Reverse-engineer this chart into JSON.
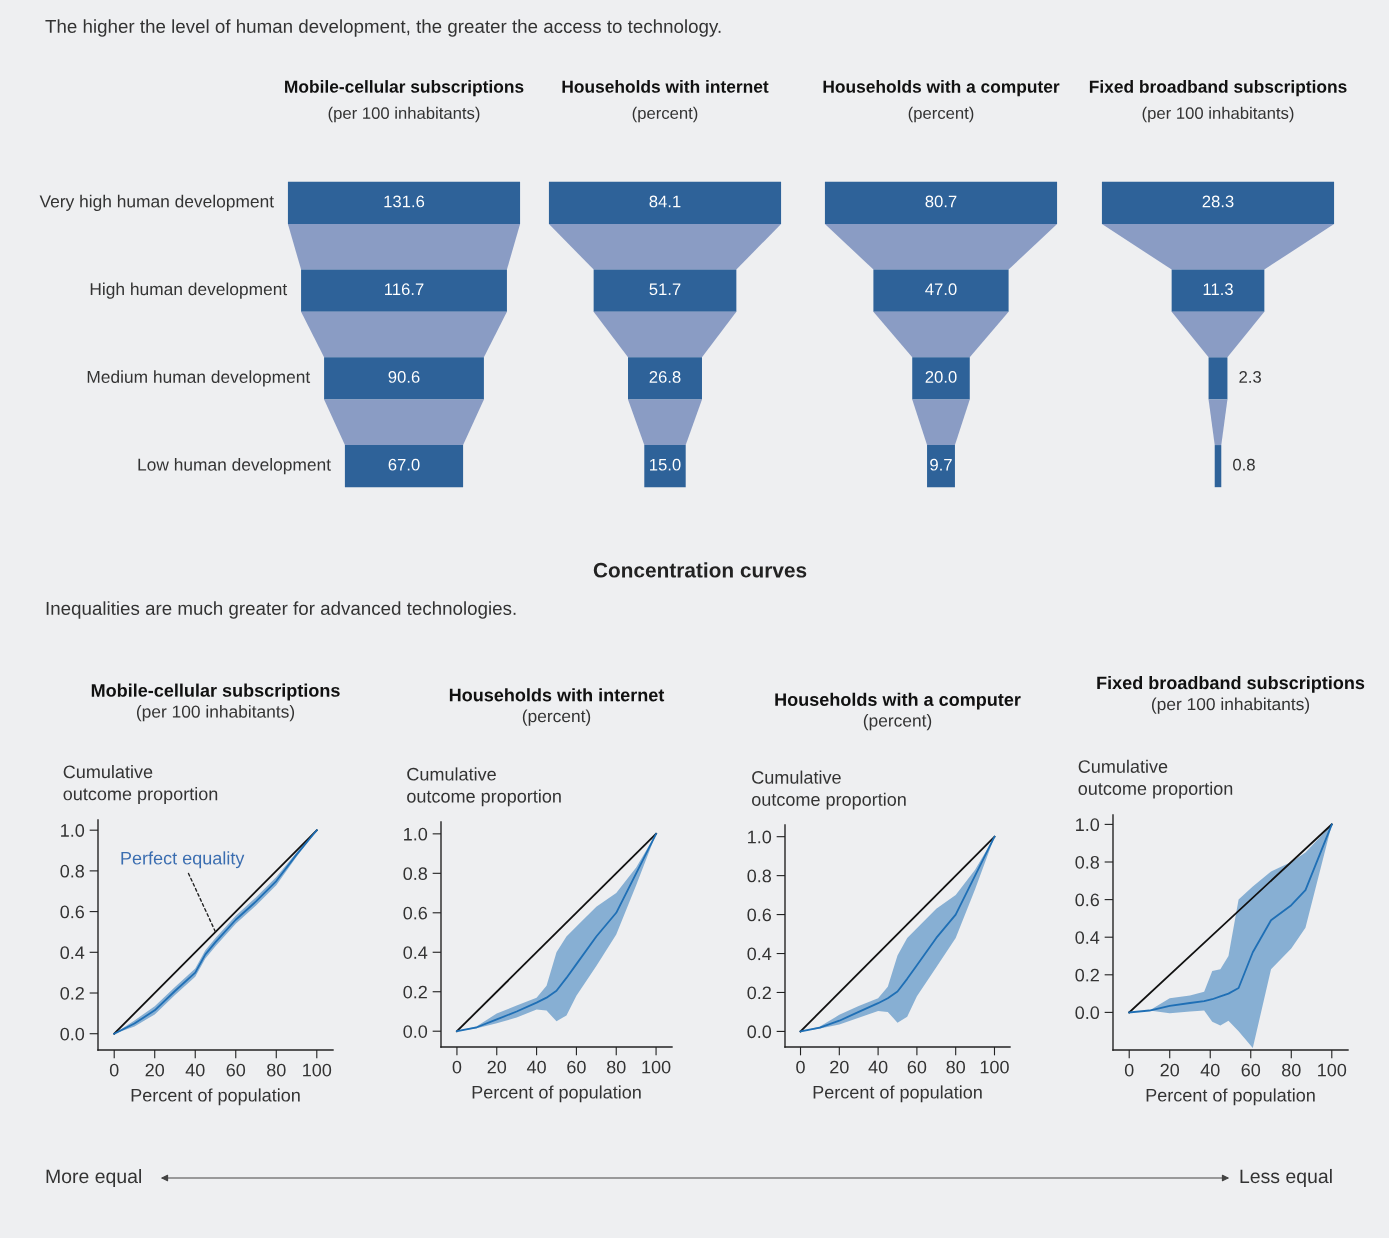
{
  "chart_data": [
    {
      "type": "other",
      "title": "Mobile-cellular subscriptions",
      "subtitle": "(per 100 inhabitants)",
      "categories": [
        "Very high human development",
        "High human development",
        "Medium human development",
        "Low human development"
      ],
      "values": [
        131.6,
        116.7,
        90.6,
        67.0
      ],
      "value_labels": [
        "131.6",
        "116.7",
        "90.6",
        "67.0"
      ],
      "color": "#2e6299",
      "annotations": [
        "The higher the level of human development, the greater the access to technology."
      ]
    },
    {
      "type": "other",
      "title": "Households with internet",
      "subtitle": "(percent)",
      "categories": [
        null,
        null,
        null,
        null
      ],
      "values": [
        84.1,
        51.7,
        26.8,
        15.0
      ],
      "value_labels": [
        "84.1",
        "51.7",
        "26.8",
        "15.0"
      ],
      "color": "#2e6299"
    },
    {
      "type": "other",
      "title": "Households with a computer",
      "subtitle": "(percent)",
      "categories": [
        null,
        null,
        null,
        null
      ],
      "values": [
        80.7,
        47.0,
        20.0,
        9.7
      ],
      "value_labels": [
        "80.7",
        "47.0",
        "20.0",
        "9.7"
      ],
      "color": "#2e6299"
    },
    {
      "type": "other",
      "title": "Fixed broadband subscriptions",
      "subtitle": "(per 100 inhabitants)",
      "categories": [
        null,
        null,
        null,
        null
      ],
      "values": [
        28.3,
        11.3,
        2.3,
        0.8
      ],
      "value_labels": [
        "28.3",
        "11.3",
        "2.3",
        "0.8"
      ],
      "color": "#2e6299"
    },
    {
      "type": "line",
      "title": "Mobile-cellular subscriptions",
      "subtitle": "(per 100 inhabitants)",
      "xlabel": "Percent of population",
      "ylabel": "Cumulative\noutcome proportion",
      "xlim": [
        -8,
        108
      ],
      "ylim": [
        -0.08,
        1.05
      ],
      "xticks": [
        0,
        20,
        40,
        60,
        80,
        100
      ],
      "yticks": [
        {
          "value": 0,
          "label": "0.0"
        },
        {
          "value": 0.2,
          "label": "0.2"
        },
        {
          "value": 0.4,
          "label": "0.4"
        },
        {
          "value": 0.6,
          "label": "0.6"
        },
        {
          "value": 0.8,
          "label": "0.8"
        },
        {
          "value": 1,
          "label": "1.0"
        }
      ],
      "grid": false,
      "legend": false,
      "series": [
        {
          "name": "Perfect equality",
          "color": "#111111",
          "x": [
            0,
            100
          ],
          "values": [
            0,
            1
          ]
        },
        {
          "color": "#1f6fb5",
          "x": [
            0,
            10,
            20,
            30,
            40,
            45,
            50,
            60,
            70,
            80,
            90,
            100
          ],
          "values": [
            0,
            0.05,
            0.115,
            0.21,
            0.3,
            0.39,
            0.45,
            0.56,
            0.65,
            0.75,
            0.88,
            1.0
          ],
          "lower": [
            0,
            0.035,
            0.095,
            0.19,
            0.28,
            0.37,
            0.43,
            0.54,
            0.63,
            0.73,
            0.87,
            1.0
          ],
          "upper": [
            0,
            0.065,
            0.135,
            0.23,
            0.32,
            0.41,
            0.47,
            0.58,
            0.67,
            0.77,
            0.89,
            1.0
          ]
        }
      ],
      "annotations": [
        "Concentration curves",
        "Inequalities are much greater for advanced technologies.",
        "More equal",
        "Less equal"
      ]
    },
    {
      "type": "line",
      "title": "Households with internet",
      "subtitle": "(percent)",
      "xlabel": "Percent of population",
      "ylabel": "Cumulative\noutcome proportion",
      "xlim": [
        -8,
        108
      ],
      "ylim": [
        -0.08,
        1.06
      ],
      "xticks": [
        0,
        20,
        40,
        60,
        80,
        100
      ],
      "yticks": [
        {
          "value": 0,
          "label": "0.0"
        },
        {
          "value": 0.2,
          "label": "0.2"
        },
        {
          "value": 0.4,
          "label": "0.4"
        },
        {
          "value": 0.6,
          "label": "0.6"
        },
        {
          "value": 0.8,
          "label": "0.8"
        },
        {
          "value": 1,
          "label": "1.0"
        }
      ],
      "grid": false,
      "legend": false,
      "series": [
        {
          "color": "#111111",
          "x": [
            0,
            100
          ],
          "values": [
            0,
            1
          ]
        },
        {
          "color": "#1f6fb5",
          "x": [
            0,
            10,
            20,
            30,
            40,
            45,
            50,
            55,
            60,
            70,
            80,
            90,
            100
          ],
          "values": [
            0,
            0.02,
            0.06,
            0.1,
            0.145,
            0.17,
            0.205,
            0.27,
            0.34,
            0.48,
            0.6,
            0.8,
            1.0
          ],
          "lower": [
            0,
            0.015,
            0.04,
            0.07,
            0.11,
            0.105,
            0.05,
            0.08,
            0.18,
            0.33,
            0.49,
            0.74,
            1.0
          ],
          "upper": [
            0,
            0.025,
            0.09,
            0.13,
            0.17,
            0.23,
            0.4,
            0.48,
            0.53,
            0.63,
            0.7,
            0.83,
            1.0
          ]
        }
      ]
    },
    {
      "type": "line",
      "title": "Households with a computer",
      "subtitle": "(percent)",
      "xlabel": "Percent of population",
      "ylabel": "Cumulative\noutcome proportion",
      "xlim": [
        -8,
        108
      ],
      "ylim": [
        -0.08,
        1.06
      ],
      "xticks": [
        0,
        20,
        40,
        60,
        80,
        100
      ],
      "yticks": [
        {
          "value": 0,
          "label": "0.0"
        },
        {
          "value": 0.2,
          "label": "0.2"
        },
        {
          "value": 0.4,
          "label": "0.4"
        },
        {
          "value": 0.6,
          "label": "0.6"
        },
        {
          "value": 0.8,
          "label": "0.8"
        },
        {
          "value": 1,
          "label": "1.0"
        }
      ],
      "grid": false,
      "legend": false,
      "series": [
        {
          "color": "#111111",
          "x": [
            0,
            100
          ],
          "values": [
            0,
            1
          ]
        },
        {
          "color": "#1f6fb5",
          "x": [
            0,
            10,
            20,
            30,
            40,
            45,
            50,
            55,
            60,
            70,
            80,
            90,
            100
          ],
          "values": [
            0,
            0.02,
            0.055,
            0.1,
            0.145,
            0.17,
            0.205,
            0.27,
            0.34,
            0.48,
            0.6,
            0.8,
            1.0
          ],
          "lower": [
            0,
            0.015,
            0.035,
            0.07,
            0.105,
            0.1,
            0.045,
            0.075,
            0.18,
            0.33,
            0.48,
            0.73,
            1.0
          ],
          "upper": [
            0,
            0.025,
            0.085,
            0.13,
            0.17,
            0.23,
            0.39,
            0.48,
            0.53,
            0.63,
            0.7,
            0.83,
            1.0
          ]
        }
      ]
    },
    {
      "type": "line",
      "title": "Fixed broadband subscriptions",
      "subtitle": "(per 100 inhabitants)",
      "xlabel": "Percent of population",
      "ylabel": "Cumulative\noutcome proportion",
      "xlim": [
        -8,
        108
      ],
      "ylim": [
        -0.2,
        1.05
      ],
      "xticks": [
        0,
        20,
        40,
        60,
        80,
        100
      ],
      "yticks": [
        {
          "value": 0,
          "label": "0.0"
        },
        {
          "value": 0.2,
          "label": "0.2"
        },
        {
          "value": 0.4,
          "label": "0.4"
        },
        {
          "value": 0.6,
          "label": "0.6"
        },
        {
          "value": 0.8,
          "label": "0.8"
        },
        {
          "value": 1,
          "label": "1.0"
        }
      ],
      "grid": false,
      "legend": false,
      "series": [
        {
          "color": "#111111",
          "x": [
            0,
            100
          ],
          "values": [
            0,
            1
          ]
        },
        {
          "color": "#1f6fb5",
          "x": [
            0,
            10,
            20,
            30,
            37,
            41,
            45,
            49,
            54,
            61,
            70,
            80,
            87,
            100
          ],
          "values": [
            0,
            0.01,
            0.035,
            0.05,
            0.06,
            0.07,
            0.085,
            0.1,
            0.13,
            0.32,
            0.49,
            0.57,
            0.65,
            1.0
          ],
          "lower": [
            0,
            0.01,
            -0.005,
            0.005,
            0.01,
            -0.05,
            -0.07,
            -0.045,
            -0.1,
            -0.19,
            0.23,
            0.34,
            0.45,
            1.0
          ],
          "upper": [
            0,
            0.01,
            0.075,
            0.09,
            0.11,
            0.22,
            0.23,
            0.3,
            0.6,
            0.67,
            0.75,
            0.8,
            0.85,
            1.0
          ]
        }
      ]
    }
  ]
}
